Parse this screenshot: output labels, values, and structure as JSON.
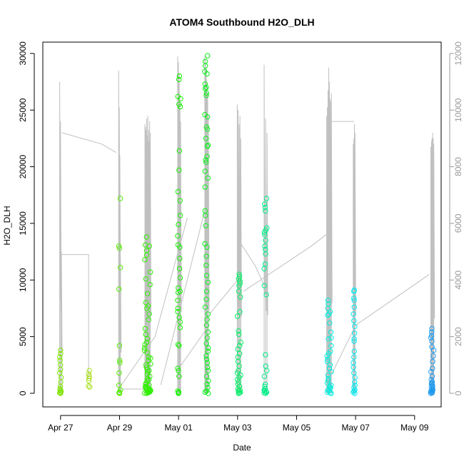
{
  "chart_data": {
    "type": "scatter",
    "title": "ATOM4 Southbound H2O_DLH",
    "xlabel": "Date",
    "ylabel": "H2O_DLH",
    "x_ticks": [
      "Apr 27",
      "Apr 29",
      "May 01",
      "May 03",
      "May 05",
      "May 07",
      "May 09"
    ],
    "x_tick_days": [
      0,
      2,
      4,
      6,
      8,
      10,
      12
    ],
    "xlim_days": [
      -0.6,
      12.9
    ],
    "y_ticks": [
      0,
      5000,
      10000,
      15000,
      20000,
      25000,
      30000
    ],
    "ylim": [
      -1200,
      31000
    ],
    "y2_ticks": [
      0,
      2000,
      4000,
      6000,
      8000,
      10000,
      12000
    ],
    "y2lim": [
      -480,
      12400
    ],
    "secondary_series_color": "#c0c0c0",
    "primary_series": [
      {
        "name": "Apr 27 flight",
        "day": 0.0,
        "spread": 0.06,
        "color": "#7fe600",
        "values": [
          3800,
          3500,
          3200,
          2900,
          2500,
          2100,
          1800,
          1400,
          1000,
          600,
          400,
          200,
          100,
          50,
          0,
          300
        ]
      },
      {
        "name": "Apr 28 flight",
        "day": 0.97,
        "spread": 0.04,
        "color": "#a8e01a",
        "values": [
          2000,
          1700,
          1500,
          1300,
          1100,
          650,
          550
        ]
      },
      {
        "name": "Apr 29 flight A",
        "day": 2.0,
        "spread": 0.06,
        "color": "#55ee00",
        "values": [
          17200,
          13000,
          12800,
          11100,
          9200,
          4200,
          2900,
          2700,
          1800,
          700,
          300,
          100,
          50,
          0
        ]
      },
      {
        "name": "Apr 29-30 flight B",
        "day": 2.95,
        "spread": 0.22,
        "color": "#2ef000",
        "values": [
          13800,
          13100,
          13000,
          12600,
          12200,
          11800,
          10700,
          10100,
          9600,
          8800,
          8000,
          7700,
          7500,
          7000,
          6500,
          5700,
          5200,
          4800,
          4300,
          4000,
          3600,
          3200,
          2900,
          2600,
          2300,
          2100,
          1900,
          1700,
          1500,
          1300,
          1100,
          900,
          800,
          700,
          600,
          500,
          400,
          300,
          250,
          200,
          150,
          100,
          80,
          50,
          30,
          0,
          600,
          450,
          350,
          1200,
          2000,
          2500,
          3100,
          3800,
          4500
        ]
      },
      {
        "name": "May 01 flight",
        "day": 4.02,
        "spread": 0.1,
        "color": "#14f000",
        "values": [
          28000,
          27700,
          26200,
          26000,
          25500,
          25300,
          21400,
          19700,
          17800,
          17000,
          15700,
          14900,
          13900,
          13100,
          12900,
          11900,
          11000,
          10200,
          9300,
          9000,
          8900,
          8200,
          7500,
          7200,
          6700,
          6300,
          5800,
          4300,
          4200,
          2200,
          2000,
          1500,
          200,
          100,
          50,
          0
        ]
      },
      {
        "name": "May 01-02 flight",
        "day": 4.95,
        "spread": 0.12,
        "color": "#0af01a",
        "values": [
          29800,
          29300,
          28900,
          28400,
          28200,
          27300,
          27000,
          26900,
          26500,
          26300,
          24600,
          24400,
          23500,
          23300,
          22500,
          21900,
          21800,
          20900,
          20600,
          20400,
          19600,
          19000,
          18200,
          16100,
          15700,
          14800,
          13200,
          12900,
          12100,
          11300,
          10400,
          9800,
          9000,
          8300,
          7600,
          7000,
          6500,
          6000,
          5400,
          4900,
          4400,
          4000,
          3700,
          3300,
          3000,
          2700,
          2300,
          2000,
          1500,
          1100,
          800,
          500,
          200,
          100,
          0
        ]
      },
      {
        "name": "May 03 flight",
        "day": 6.05,
        "spread": 0.12,
        "color": "#00ee66",
        "values": [
          10500,
          10300,
          10100,
          9900,
          9700,
          9500,
          9000,
          8500,
          7200,
          6800,
          5500,
          5200,
          4500,
          4200,
          3900,
          3500,
          3200,
          2800,
          2400,
          2000,
          1800,
          1600,
          1400,
          1200,
          1000,
          800,
          600,
          400,
          300,
          200,
          100,
          50,
          0
        ]
      },
      {
        "name": "May 03-04 flight",
        "day": 6.95,
        "spread": 0.1,
        "color": "#00ee88",
        "values": [
          17200,
          16700,
          16400,
          16100,
          14600,
          14400,
          14200,
          14000,
          13500,
          13000,
          12700,
          12300,
          11400,
          11000,
          9500,
          8700,
          3400,
          2400,
          2000,
          1500,
          800,
          600,
          400,
          300,
          200,
          150,
          100,
          50,
          0
        ]
      },
      {
        "name": "May 06 flight",
        "day": 9.1,
        "spread": 0.16,
        "color": "#00eedd",
        "values": [
          8200,
          7900,
          7500,
          7200,
          7000,
          6900,
          6200,
          5400,
          4900,
          4800,
          4200,
          3700,
          3500,
          3300,
          3000,
          2800,
          2500,
          2200,
          1900,
          1600,
          1300,
          1100,
          900,
          700,
          600,
          500,
          400,
          300,
          200,
          100,
          50,
          0
        ]
      },
      {
        "name": "May 07 flight",
        "day": 9.95,
        "spread": 0.06,
        "color": "#00e8ee",
        "values": [
          9100,
          9000,
          8400,
          8200,
          7600,
          7000,
          6400,
          5900,
          5300,
          4800,
          4600,
          3700,
          3200,
          2700,
          2300,
          1800,
          1400,
          1000,
          700,
          500,
          300,
          200,
          100,
          0
        ]
      },
      {
        "name": "May 09 flight",
        "day": 12.6,
        "spread": 0.1,
        "color": "#1a9af0",
        "values": [
          5700,
          5400,
          5100,
          4900,
          4600,
          4100,
          3800,
          3300,
          2800,
          2200,
          1900,
          1500,
          1200,
          1000,
          900,
          800,
          700,
          600,
          500,
          400,
          300,
          250,
          200,
          150,
          100,
          50,
          0
        ]
      }
    ],
    "secondary_series": [
      {
        "name": "Apr 27 flight",
        "day": 0.0,
        "spread": 0.06,
        "peaks": [
          11000,
          9600,
          5000
        ]
      },
      {
        "name": "Apr 29 flight A",
        "day": 2.0,
        "spread": 0.06,
        "peaks": [
          11400,
          10100,
          8400,
          4800
        ]
      },
      {
        "name": "Apr 29-30 flight B",
        "day": 2.95,
        "spread": 0.18,
        "peaks": [
          9500,
          9400,
          9300,
          9700,
          9100,
          9800,
          9300,
          8900,
          9600,
          9200
        ]
      },
      {
        "name": "May 01 flight",
        "day": 4.02,
        "spread": 0.1,
        "peaks": [
          11900,
          11700,
          11300,
          10500,
          9600
        ]
      },
      {
        "name": "May 01-02 flight",
        "day": 4.95,
        "spread": 0.12,
        "peaks": [
          11900,
          11800,
          11500,
          11000,
          10600,
          9800
        ]
      },
      {
        "name": "May 03 flight",
        "day": 6.05,
        "spread": 0.12,
        "peaks": [
          10200,
          10000,
          9500,
          9800,
          9000
        ]
      },
      {
        "name": "May 03-04 flight",
        "day": 6.95,
        "spread": 0.1,
        "peaks": [
          11600,
          9700,
          9200
        ]
      },
      {
        "name": "May 06 flight",
        "day": 9.1,
        "spread": 0.16,
        "peaks": [
          9800,
          10100,
          10700,
          11500,
          11000,
          10400,
          10300,
          10600
        ]
      },
      {
        "name": "May 07 flight",
        "day": 9.95,
        "spread": 0.06,
        "peaks": [
          8800,
          9000,
          9500,
          9200
        ]
      },
      {
        "name": "May 09 flight",
        "day": 12.6,
        "spread": 0.1,
        "peaks": [
          8700,
          8900,
          9000,
          9200,
          9000,
          8800
        ]
      }
    ],
    "secondary_connectors": [
      [
        [
          0.0,
          4900
        ],
        [
          0.95,
          4900
        ],
        [
          0.95,
          500
        ]
      ],
      [
        [
          0.05,
          9200
        ],
        [
          1.4,
          8800
        ],
        [
          1.88,
          8500
        ]
      ],
      [
        [
          2.0,
          150
        ],
        [
          2.9,
          150
        ]
      ],
      [
        [
          2.0,
          200
        ],
        [
          3.2,
          2000
        ],
        [
          4.3,
          6200
        ]
      ],
      [
        [
          4.02,
          900
        ],
        [
          4.9,
          2200
        ],
        [
          5.0,
          200
        ]
      ],
      [
        [
          4.9,
          6500
        ],
        [
          3.4,
          300
        ]
      ],
      [
        [
          5.05,
          2800
        ],
        [
          6.0,
          4000
        ]
      ],
      [
        [
          6.1,
          5300
        ],
        [
          6.6,
          4500
        ],
        [
          6.9,
          3800
        ]
      ],
      [
        [
          6.2,
          3600
        ],
        [
          8.5,
          5200
        ],
        [
          9.0,
          5600
        ]
      ],
      [
        [
          9.1,
          9600
        ],
        [
          9.95,
          9600
        ]
      ],
      [
        [
          9.2,
          700
        ],
        [
          10.0,
          2400
        ],
        [
          12.5,
          4200
        ]
      ]
    ]
  }
}
